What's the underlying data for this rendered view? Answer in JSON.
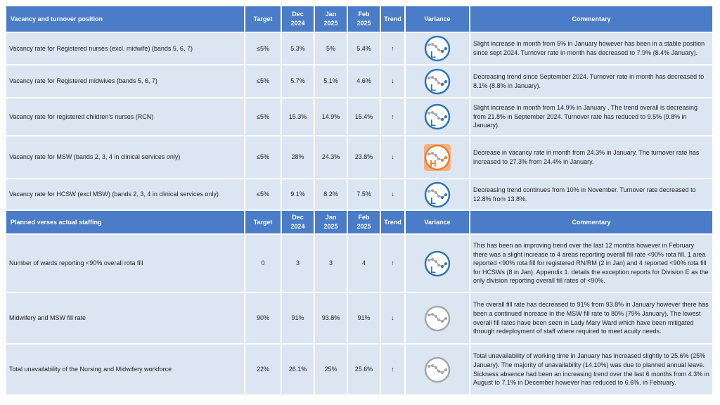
{
  "sections": [
    {
      "header": {
        "title": "Vacancy and turnover position",
        "target": "Target",
        "dec": "Dec 2024",
        "jan": "Jan 2025",
        "feb": "Feb 2025",
        "trend": "Trend",
        "variance": "Variance",
        "commentary": "Commentary"
      },
      "rows": [
        {
          "label": "Vacancy rate for Registered nurses (excl. midwife) (bands 5, 6, 7)",
          "target": "≤5%",
          "dec": "5.3%",
          "jan": "5%",
          "feb": "5.4%",
          "trend": "↑",
          "variance": "L",
          "variance_color": "#2e75b6",
          "commentary": "Slight increase in month from 5% in January however has been in a stable position since sept 2024.  Turnover rate in month has decreased to 7.9% (8.4% January)."
        },
        {
          "label": "Vacancy rate for Registered midwives (bands 5, 6, 7)",
          "target": "≤5%",
          "dec": "5.7%",
          "jan": "5.1%",
          "feb": "4.6%",
          "trend": "↓",
          "variance": "L",
          "variance_color": "#2e75b6",
          "commentary": "Decreasing trend since September 2024. Turnover rate in month has decreased to 8.1% (8.8% in January)."
        },
        {
          "label": "Vacancy rate for registered children’s nurses (RCN)",
          "target": "≤5%",
          "dec": "15.3%",
          "jan": "14.9%",
          "feb": "15.4%",
          "trend": "↑",
          "variance": "L",
          "variance_color": "#2e75b6",
          "commentary": "Slight increase in month from 14.9% in January . The trend overall is decreasing from 21.8% in September 2024.  Turnover rate has reduced to 9.5% (9.8% in January)."
        },
        {
          "label": "Vacancy rate for MSW (bands 2, 3, 4 in clinical services only)",
          "target": "≤5%",
          "dec": "28%",
          "jan": "24.3%",
          "feb": "23.8%",
          "trend": "↓",
          "variance": "H",
          "variance_color": "#ed7d31",
          "commentary": "Decrease in vacancy rate in month from 24.3% in January.  The turnover rate has increased to 27.3% from 24.4% in January."
        },
        {
          "label": "Vacancy rate for HCSW (excl MSW) (bands 2, 3, 4 in clinical services only)",
          "target": "≤5%",
          "dec": "9.1%",
          "jan": "8.2%",
          "feb": "7.5%",
          "trend": "↓",
          "variance": "L",
          "variance_color": "#2e75b6",
          "commentary": "Decreasing trend continues from 10% in November. Turnover rate decreased to 12.8% from 13.8%."
        }
      ]
    },
    {
      "header": {
        "title": "Planned verses actual staffing",
        "target": "Target",
        "dec": "Dec 2024",
        "jan": "Jan 2025",
        "feb": "Feb 2025",
        "trend": "Trend",
        "variance": "Variance",
        "commentary": "Commentary"
      },
      "rows": [
        {
          "label": "Number of wards reporting <90% overall rota fill",
          "target": "0",
          "dec": "3",
          "jan": "3",
          "feb": "4",
          "trend": "↑",
          "variance": "L",
          "variance_color": "#2e75b6",
          "commentary": "This has been an improving trend over the last 12 months however in February there was a slight increase to 4 areas reporting overall fill rate <90% rota fill. 1 area reported <90% rota fill for registered RN/RM (2 in Jan) and 4 reported <90% rota fill for HCSWs (8 in Jan). Appendix 1. details the exception reports for Division E as the only division reporting overall fill rates of <90%."
        },
        {
          "label": "Midwifery and MSW fill rate",
          "target": "90%",
          "dec": "91%",
          "jan": "93.8%",
          "feb": "91%",
          "trend": "↓",
          "variance_color": "#a6a6a6",
          "commentary": "The overall fill rate has decreased to 91% from 93.8% in January however there has been a continued increase in the MSW fill rate to 80% (79% January). The lowest overall fill rates have been seen in Lady Mary Ward which have been mitigated through redeployment of staff where required to meet acuity needs."
        },
        {
          "label": "Total unavailability of the Nursing and Midwifery workforce",
          "target": "22%",
          "dec": "26.1%",
          "jan": "25%",
          "feb": "25.6%",
          "trend": "↑",
          "variance_color": "#a6a6a6",
          "commentary": "Total unavailability of working time in January has increased slightly to 25.6% (25% January). The majority of unavailability (14.10%) was due to planned annual leave.  Sickness absence had been an increasing trend over the last 6 months from 4.3% in August to 7.1% in December however has reduced to 6.6%. in February."
        }
      ]
    }
  ]
}
